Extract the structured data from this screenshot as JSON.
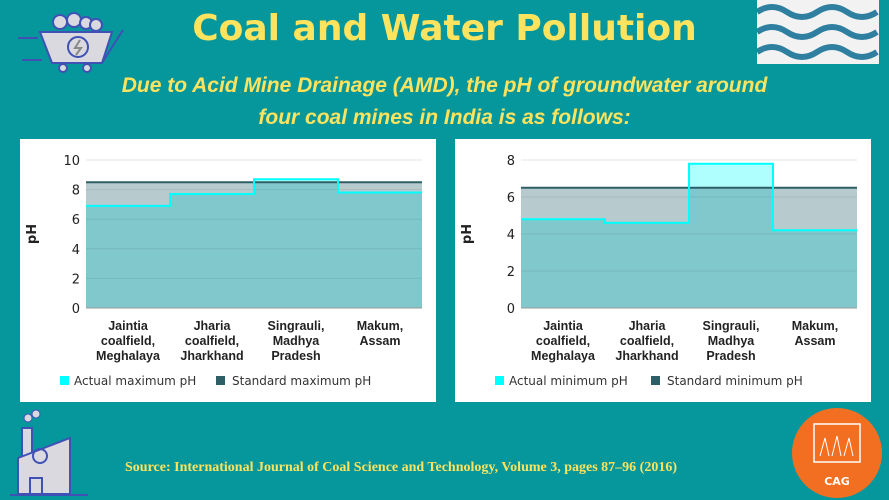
{
  "title": "Coal and Water Pollution",
  "subtitle_line1": "Due to Acid Mine Drainage (AMD), the pH of groundwater around",
  "subtitle_line2": "four coal mines in India is as follows:",
  "source": "Source: International Journal of Coal Science and Technology, Volume 3, pages 87–96 (2016)",
  "logo_text": "CAG",
  "icons": [
    "coal-cart-icon",
    "waves-icon",
    "factory-icon",
    "cag-logo"
  ],
  "colors": {
    "background": "#05979c",
    "title": "#fde35e",
    "actual_line": "#00ffff",
    "standard_line": "#2f5f66",
    "below_fill": "#80c8cc",
    "above_fill": "#b0ffff",
    "standard_fill": "#b7cacd"
  },
  "chart_data": [
    {
      "type": "area",
      "step": true,
      "ylabel": "pH",
      "ylim": [
        0,
        10
      ],
      "yticks": [
        "0",
        "2",
        "4",
        "6",
        "8",
        "10"
      ],
      "categories": [
        "Jaintia coalfield, Meghalaya",
        "Jharia coalfield, Jharkhand",
        "Singrauli, Madhya Pradesh",
        "Makum, Assam"
      ],
      "category_lines": [
        [
          "Jaintia",
          "coalfield,",
          "Meghalaya"
        ],
        [
          "Jharia",
          "coalfield,",
          "Jharkhand"
        ],
        [
          "Singrauli,",
          "Madhya",
          "Pradesh"
        ],
        [
          "Makum,",
          "Assam"
        ]
      ],
      "series": [
        {
          "name": "Actual maximum pH",
          "values": [
            6.9,
            7.7,
            8.7,
            7.8
          ]
        },
        {
          "name": "Standard maximum pH",
          "values": [
            8.5,
            8.5,
            8.5,
            8.5
          ]
        }
      ],
      "legend": "bottom",
      "grid": true
    },
    {
      "type": "area",
      "step": true,
      "ylabel": "pH",
      "ylim": [
        0,
        8
      ],
      "yticks": [
        "0",
        "2",
        "4",
        "6",
        "8"
      ],
      "categories": [
        "Jaintia coalfield, Meghalaya",
        "Jharia coalfield, Jharkhand",
        "Singrauli, Madhya Pradesh",
        "Makum, Assam"
      ],
      "category_lines": [
        [
          "Jaintia",
          "coalfield,",
          "Meghalaya"
        ],
        [
          "Jharia",
          "coalfield,",
          "Jharkhand"
        ],
        [
          "Singrauli,",
          "Madhya",
          "Pradesh"
        ],
        [
          "Makum,",
          "Assam"
        ]
      ],
      "series": [
        {
          "name": "Actual minimum pH",
          "values": [
            4.8,
            4.6,
            7.8,
            4.2
          ]
        },
        {
          "name": "Standard minimum pH",
          "values": [
            6.5,
            6.5,
            6.5,
            6.5
          ]
        }
      ],
      "legend": "bottom",
      "grid": true
    }
  ]
}
